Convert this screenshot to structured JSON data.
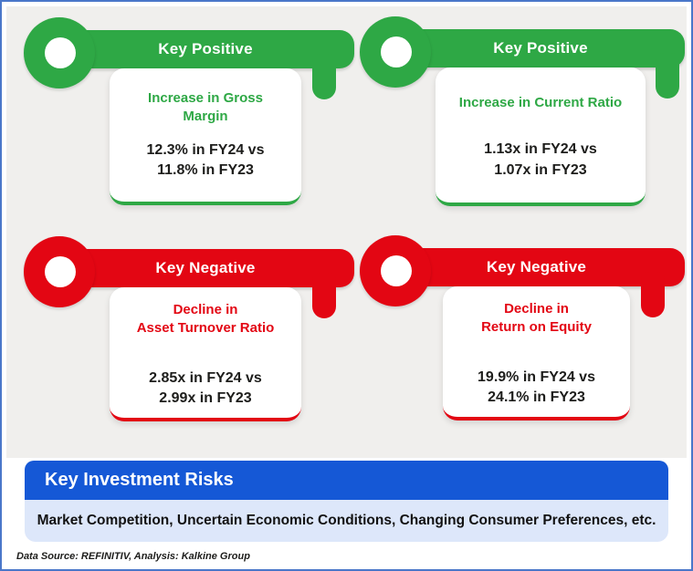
{
  "cards": [
    {
      "type": "positive",
      "key_label": "Key Positive",
      "title_line1": "Increase in Gross",
      "title_line2": "Margin",
      "metric_line1": "12.3% in FY24 vs",
      "metric_line2": "11.8% in FY23"
    },
    {
      "type": "positive",
      "key_label": "Key Positive",
      "title_line1": "Increase in Current Ratio",
      "title_line2": "",
      "metric_line1": "1.13x in FY24 vs",
      "metric_line2": "1.07x in FY23"
    },
    {
      "type": "negative",
      "key_label": "Key Negative",
      "title_line1": "Decline in",
      "title_line2": "Asset Turnover Ratio",
      "metric_line1": "2.85x in FY24 vs",
      "metric_line2": "2.99x in FY23"
    },
    {
      "type": "negative",
      "key_label": "Key Negative",
      "title_line1": "Decline in",
      "title_line2": "Return on Equity",
      "metric_line1": "19.9% in FY24 vs",
      "metric_line2": "24.1% in FY23"
    }
  ],
  "risks": {
    "title": "Key Investment Risks",
    "text": "Market Competition, Uncertain Economic Conditions, Changing Consumer Preferences, etc."
  },
  "footer": {
    "source_note": "Data Source: REFINITIV, Analysis: Kalkine Group"
  },
  "colors": {
    "positive": "#2ea845",
    "negative": "#e30613",
    "banner_blue": "#1558d6",
    "light_blue": "#dde7fa",
    "panel_background": "#f0efed",
    "frame_border": "#4a77c9",
    "text_dark": "#1d1d1b"
  }
}
